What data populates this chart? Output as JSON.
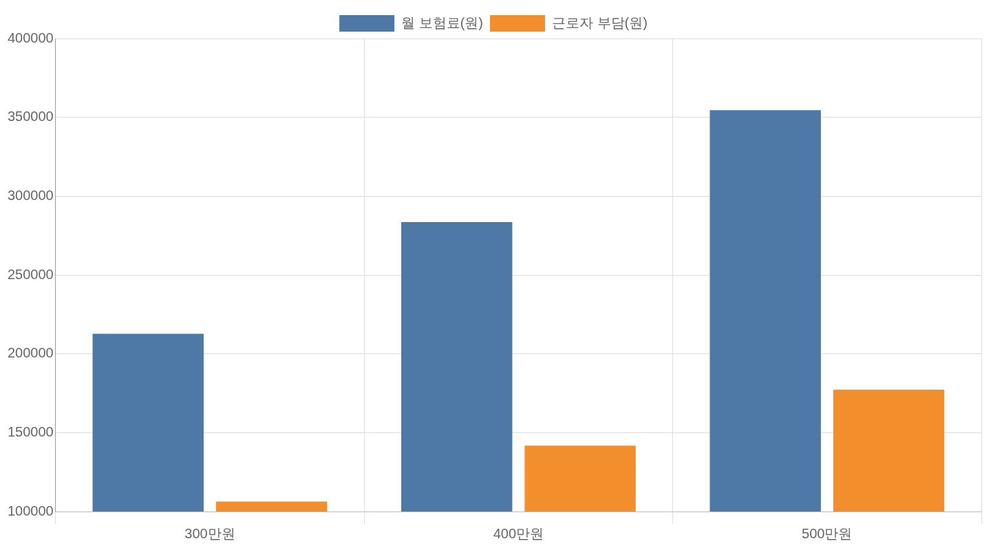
{
  "chart_data": {
    "type": "bar",
    "categories": [
      "300만원",
      "400만원",
      "500만원"
    ],
    "series": [
      {
        "name": "월 보험료(원)",
        "color": "#4e79a7",
        "values": [
          212700,
          283600,
          354500
        ]
      },
      {
        "name": "근로자 부담(원)",
        "color": "#f28e2b",
        "values": [
          106350,
          141800,
          177250
        ]
      }
    ],
    "ylim": [
      100000,
      400000
    ],
    "yticks": [
      100000,
      150000,
      200000,
      250000,
      300000,
      350000,
      400000
    ],
    "grid": true,
    "legend": "top"
  }
}
